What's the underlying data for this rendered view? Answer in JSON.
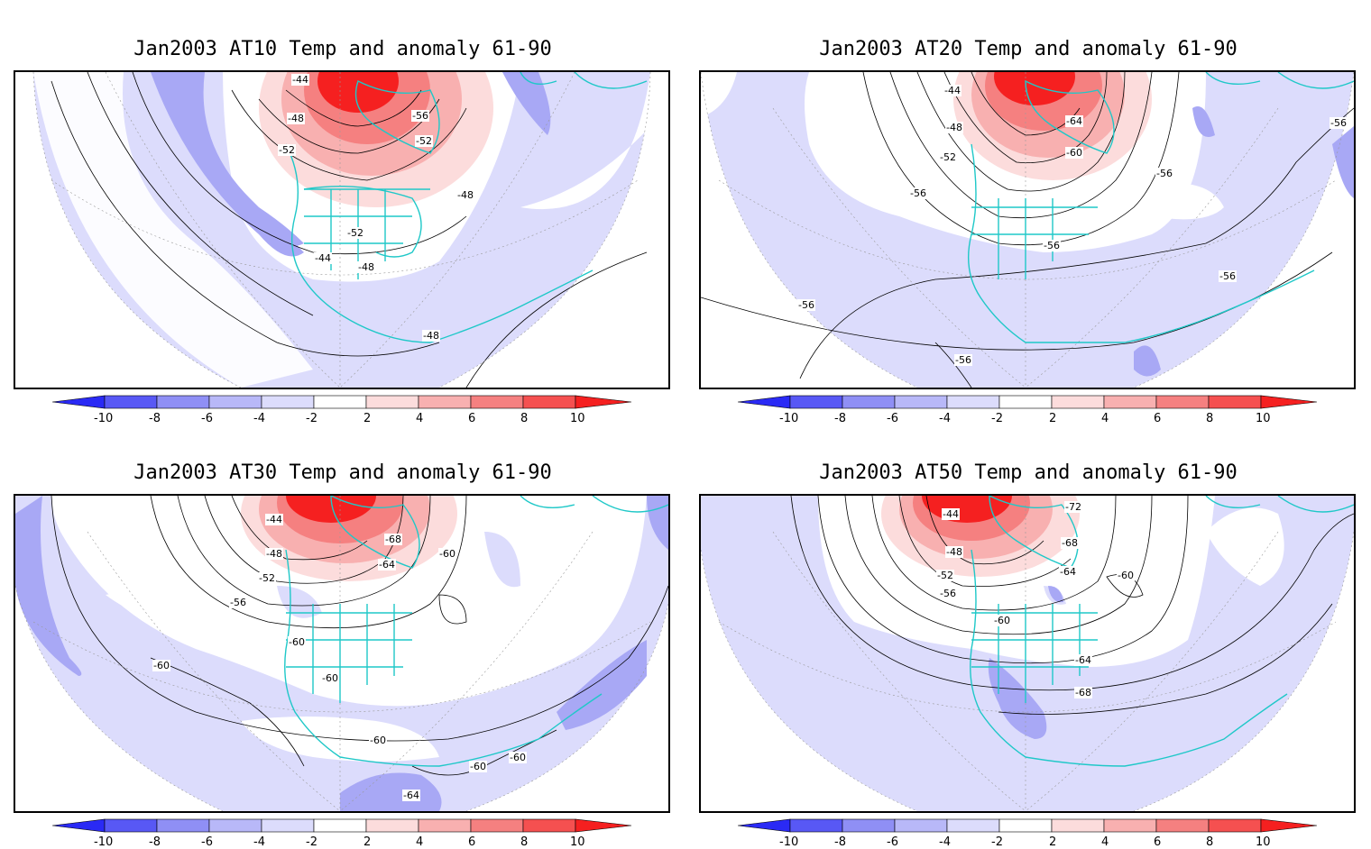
{
  "panels": [
    {
      "title": "Jan2003 AT10 Temp and anomaly 61-90",
      "labels": [
        "-44",
        "-48",
        "-52",
        "-56",
        "-52",
        "-48",
        "-52",
        "-44",
        "-48",
        "-48"
      ]
    },
    {
      "title": "Jan2003 AT20 Temp and anomaly 61-90",
      "labels": [
        "-44",
        "-48",
        "-52",
        "-56",
        "-64",
        "-60",
        "-56",
        "-56",
        "-56",
        "-56",
        "-56",
        "-56"
      ]
    },
    {
      "title": "Jan2003 AT30 Temp and anomaly 61-90",
      "labels": [
        "-44",
        "-48",
        "-52",
        "-56",
        "-68",
        "-64",
        "-60",
        "-60",
        "-60",
        "-60",
        "-60",
        "-60",
        "-60",
        "-64"
      ]
    },
    {
      "title": "Jan2003 AT50 Temp and anomaly 61-90",
      "labels": [
        "-44",
        "-48",
        "-52",
        "-56",
        "-72",
        "-68",
        "-64",
        "-60",
        "-60",
        "-64",
        "-68"
      ]
    }
  ],
  "colorbar": {
    "ticks": [
      "-10",
      "-8",
      "-6",
      "-4",
      "-2",
      "2",
      "4",
      "6",
      "8",
      "10"
    ],
    "colors": [
      "#2a2af5",
      "#5858f5",
      "#8f8ff5",
      "#b8b8f8",
      "#dcdcfc",
      "#ffffff",
      "#fcdcdc",
      "#f8b0b0",
      "#f58080",
      "#f55050",
      "#f52020"
    ]
  },
  "colors": {
    "coast": "#1fc8c8",
    "negative_fill": "#dcdcfc",
    "strong_negative": "#a8a8f5",
    "positive_fill": "#f53030",
    "contour": "#000000"
  }
}
